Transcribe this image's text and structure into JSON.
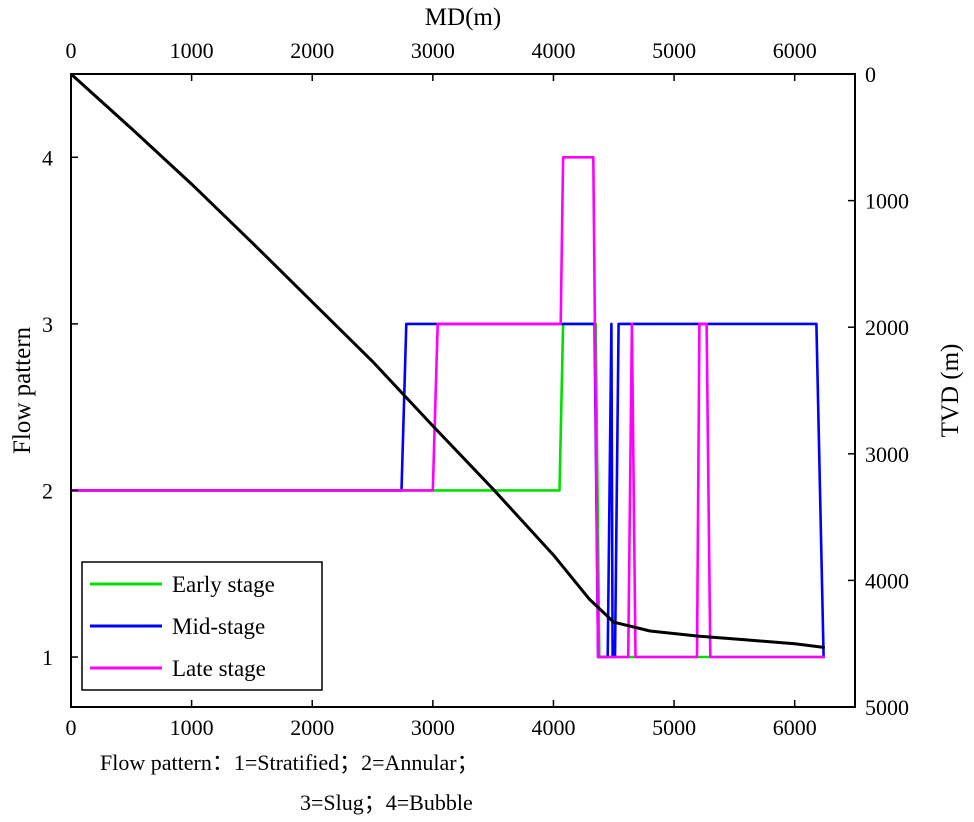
{
  "chart_data": {
    "type": "line",
    "title": "",
    "xlabel": "MD(m)",
    "xlim": [
      0,
      6500
    ],
    "xticks": [
      0,
      1000,
      2000,
      3000,
      4000,
      5000,
      6000
    ],
    "xtick_labels": [
      "0",
      "1000",
      "2000",
      "3000",
      "4000",
      "5000",
      "6000"
    ],
    "ylabel_left": "Flow pattern",
    "ylim_left": [
      0.7,
      4.5
    ],
    "yticks_left": [
      1,
      2,
      3,
      4
    ],
    "ytick_labels_left": [
      "1",
      "2",
      "3",
      "4"
    ],
    "ylabel_right": "TVD (m)",
    "ylim_right": [
      0,
      5000
    ],
    "yticks_right": [
      0,
      1000,
      2000,
      3000,
      4000,
      5000
    ],
    "ytick_labels_right": [
      "0",
      "1000",
      "2000",
      "3000",
      "4000",
      "5000"
    ],
    "legend_position": "bottom-left",
    "series": [
      {
        "name": "Early stage",
        "axis": "left",
        "color": "#00e000",
        "x": [
          0,
          3000,
          3040,
          4050,
          4080,
          4350,
          4380,
          5250,
          5280,
          6250
        ],
        "y": [
          2,
          2,
          2,
          2,
          3,
          3,
          1,
          1,
          1,
          1
        ]
      },
      {
        "name": "Mid-stage",
        "axis": "left",
        "color": "#0000ff",
        "x": [
          0,
          2740,
          2780,
          4340,
          4370,
          4450,
          4480,
          4490,
          4510,
          4540,
          6180,
          6240,
          6250
        ],
        "y": [
          2,
          2,
          3,
          3,
          1,
          1,
          3,
          1,
          1,
          3,
          3,
          1,
          1
        ]
      },
      {
        "name": "Late stage",
        "axis": "left",
        "color": "#ff00ff",
        "x": [
          0,
          3000,
          3040,
          4060,
          4080,
          4330,
          4370,
          4620,
          4650,
          4680,
          5190,
          5210,
          5270,
          5300,
          5330,
          6250
        ],
        "y": [
          2,
          2,
          3,
          3,
          4,
          4,
          1,
          1,
          3,
          1,
          1,
          3,
          3,
          1,
          1,
          1
        ]
      },
      {
        "name": "TVD",
        "axis": "right",
        "color": "#000000",
        "x": [
          0,
          500,
          1000,
          1500,
          2000,
          2500,
          3000,
          3500,
          4000,
          4300,
          4500,
          4800,
          5200,
          5600,
          6000,
          6250
        ],
        "y": [
          0,
          430,
          870,
          1330,
          1800,
          2270,
          2780,
          3280,
          3800,
          4150,
          4330,
          4400,
          4440,
          4470,
          4500,
          4530
        ]
      }
    ],
    "annotations": [
      "Flow pattern：1=Stratified；2=Annular；",
      "3=Slug；4=Bubble"
    ]
  }
}
